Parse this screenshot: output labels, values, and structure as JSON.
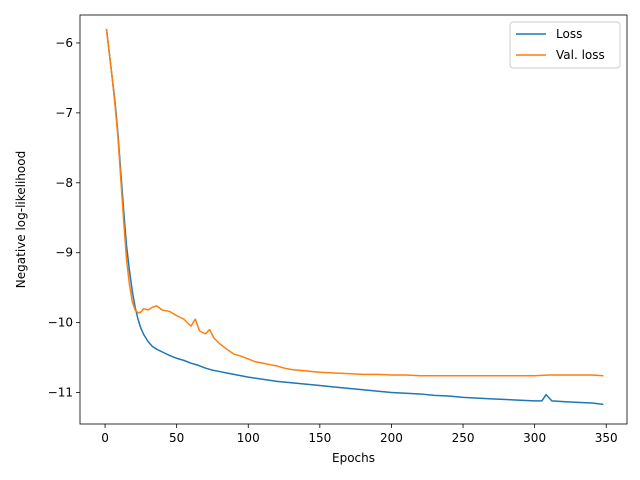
{
  "chart_data": {
    "type": "line",
    "title": "",
    "xlabel": "Epochs",
    "ylabel": "Negative log-likelihood",
    "xlim": [
      -17.5,
      364.5
    ],
    "ylim": [
      -11.45,
      -5.6
    ],
    "xticks": [
      0,
      50,
      100,
      150,
      200,
      250,
      300,
      350
    ],
    "yticks": [
      -6,
      -7,
      -8,
      -9,
      -10,
      -11
    ],
    "ytick_labels": [
      "−6",
      "−7",
      "−8",
      "−9",
      "−10",
      "−11"
    ],
    "grid": false,
    "legend_position": "top-right",
    "series": [
      {
        "name": "Loss",
        "color": "#1f77b4",
        "points": [
          [
            1,
            -5.8
          ],
          [
            3,
            -6.15
          ],
          [
            5,
            -6.5
          ],
          [
            7,
            -6.85
          ],
          [
            9,
            -7.3
          ],
          [
            11,
            -7.85
          ],
          [
            13,
            -8.4
          ],
          [
            15,
            -8.9
          ],
          [
            17,
            -9.25
          ],
          [
            19,
            -9.55
          ],
          [
            21,
            -9.78
          ],
          [
            23,
            -9.95
          ],
          [
            25,
            -10.08
          ],
          [
            27,
            -10.17
          ],
          [
            30,
            -10.27
          ],
          [
            33,
            -10.34
          ],
          [
            36,
            -10.38
          ],
          [
            40,
            -10.42
          ],
          [
            45,
            -10.47
          ],
          [
            50,
            -10.51
          ],
          [
            55,
            -10.54
          ],
          [
            60,
            -10.58
          ],
          [
            65,
            -10.61
          ],
          [
            70,
            -10.65
          ],
          [
            75,
            -10.68
          ],
          [
            80,
            -10.7
          ],
          [
            85,
            -10.72
          ],
          [
            90,
            -10.74
          ],
          [
            95,
            -10.76
          ],
          [
            100,
            -10.78
          ],
          [
            110,
            -10.81
          ],
          [
            120,
            -10.84
          ],
          [
            130,
            -10.86
          ],
          [
            140,
            -10.88
          ],
          [
            150,
            -10.9
          ],
          [
            160,
            -10.92
          ],
          [
            170,
            -10.94
          ],
          [
            180,
            -10.96
          ],
          [
            190,
            -10.98
          ],
          [
            200,
            -11.0
          ],
          [
            210,
            -11.01
          ],
          [
            220,
            -11.02
          ],
          [
            230,
            -11.04
          ],
          [
            240,
            -11.05
          ],
          [
            250,
            -11.07
          ],
          [
            260,
            -11.08
          ],
          [
            270,
            -11.09
          ],
          [
            280,
            -11.1
          ],
          [
            290,
            -11.11
          ],
          [
            300,
            -11.12
          ],
          [
            305,
            -11.12
          ],
          [
            308,
            -11.03
          ],
          [
            312,
            -11.12
          ],
          [
            320,
            -11.13
          ],
          [
            330,
            -11.14
          ],
          [
            340,
            -11.15
          ],
          [
            348,
            -11.17
          ]
        ]
      },
      {
        "name": "Val. loss",
        "color": "#ff7f0e",
        "points": [
          [
            1,
            -5.8
          ],
          [
            3,
            -6.15
          ],
          [
            5,
            -6.5
          ],
          [
            7,
            -6.9
          ],
          [
            9,
            -7.35
          ],
          [
            11,
            -7.95
          ],
          [
            13,
            -8.55
          ],
          [
            15,
            -9.1
          ],
          [
            17,
            -9.45
          ],
          [
            19,
            -9.7
          ],
          [
            21,
            -9.82
          ],
          [
            23,
            -9.86
          ],
          [
            25,
            -9.85
          ],
          [
            27,
            -9.8
          ],
          [
            30,
            -9.82
          ],
          [
            33,
            -9.78
          ],
          [
            36,
            -9.76
          ],
          [
            40,
            -9.82
          ],
          [
            45,
            -9.84
          ],
          [
            50,
            -9.9
          ],
          [
            55,
            -9.95
          ],
          [
            60,
            -10.05
          ],
          [
            63,
            -9.95
          ],
          [
            66,
            -10.12
          ],
          [
            70,
            -10.16
          ],
          [
            73,
            -10.1
          ],
          [
            76,
            -10.22
          ],
          [
            80,
            -10.3
          ],
          [
            85,
            -10.38
          ],
          [
            90,
            -10.45
          ],
          [
            95,
            -10.48
          ],
          [
            100,
            -10.52
          ],
          [
            105,
            -10.56
          ],
          [
            110,
            -10.58
          ],
          [
            115,
            -10.6
          ],
          [
            120,
            -10.62
          ],
          [
            125,
            -10.65
          ],
          [
            130,
            -10.67
          ],
          [
            140,
            -10.69
          ],
          [
            150,
            -10.71
          ],
          [
            160,
            -10.72
          ],
          [
            170,
            -10.73
          ],
          [
            180,
            -10.74
          ],
          [
            190,
            -10.74
          ],
          [
            200,
            -10.75
          ],
          [
            210,
            -10.75
          ],
          [
            220,
            -10.76
          ],
          [
            230,
            -10.76
          ],
          [
            240,
            -10.76
          ],
          [
            250,
            -10.76
          ],
          [
            260,
            -10.76
          ],
          [
            270,
            -10.76
          ],
          [
            280,
            -10.76
          ],
          [
            290,
            -10.76
          ],
          [
            300,
            -10.76
          ],
          [
            310,
            -10.75
          ],
          [
            320,
            -10.75
          ],
          [
            330,
            -10.75
          ],
          [
            340,
            -10.75
          ],
          [
            348,
            -10.76
          ]
        ]
      }
    ]
  }
}
